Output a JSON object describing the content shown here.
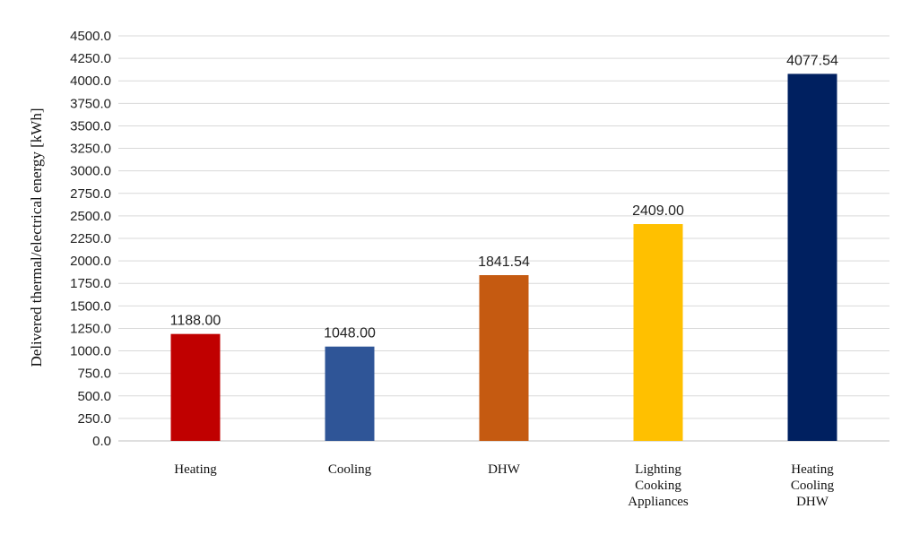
{
  "chart_data": {
    "type": "bar",
    "title": "",
    "xlabel": "",
    "ylabel": "Delivered thermal/electrical energy [kWh]",
    "ylim": [
      0,
      4500
    ],
    "ytick_step": 250,
    "ytick_labels": [
      "0.0",
      "250.0",
      "500.0",
      "750.0",
      "1000.0",
      "1250.0",
      "1500.0",
      "1750.0",
      "2000.0",
      "2250.0",
      "2500.0",
      "2750.0",
      "3000.0",
      "3250.0",
      "3500.0",
      "3750.0",
      "4000.0",
      "4250.0",
      "4500.0"
    ],
    "grid": true,
    "categories": [
      [
        "Heating"
      ],
      [
        "Cooling"
      ],
      [
        "DHW"
      ],
      [
        "Lighting",
        "Cooking",
        "Appliances"
      ],
      [
        "Heating",
        "Cooling",
        "DHW"
      ]
    ],
    "values": [
      1188.0,
      1048.0,
      1841.54,
      2409.0,
      4077.54
    ],
    "value_labels": [
      "1188.00",
      "1048.00",
      "1841.54",
      "2409.00",
      "4077.54"
    ],
    "colors": [
      "#c00000",
      "#2f5597",
      "#c55a11",
      "#ffc000",
      "#002060"
    ]
  }
}
